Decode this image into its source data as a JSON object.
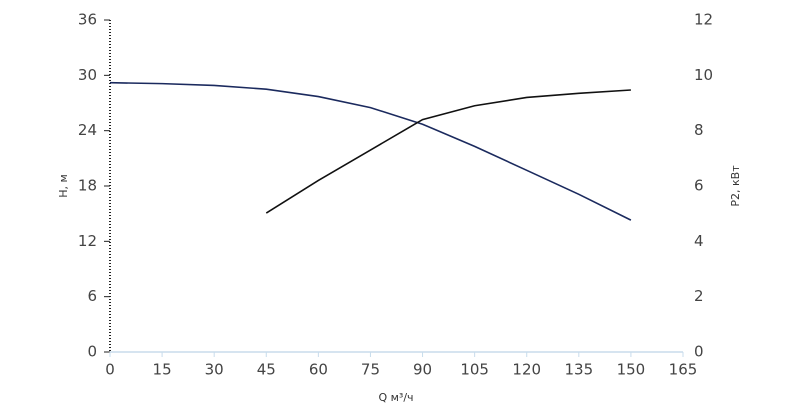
{
  "chart_data": {
    "type": "line",
    "xlabel": "Q м³/ч",
    "ylabel": "H, м",
    "y2label": "P2, кВт",
    "xlim": [
      0,
      165
    ],
    "xticks": [
      0,
      15,
      30,
      45,
      60,
      75,
      90,
      105,
      120,
      135,
      150,
      165
    ],
    "ylim": [
      0,
      36
    ],
    "yticks": [
      0,
      6,
      12,
      18,
      24,
      30,
      36
    ],
    "y2lim": [
      0,
      12
    ],
    "y2ticks": [
      0,
      2,
      4,
      6,
      8,
      10,
      12
    ],
    "grid": false,
    "series": [
      {
        "color": "#1b2a5e",
        "x": [
          0,
          15,
          30,
          45,
          60,
          75,
          90,
          105,
          120,
          135,
          150
        ],
        "values": [
          29.2,
          29.1,
          28.9,
          28.5,
          27.7,
          26.5,
          24.7,
          22.3,
          19.7,
          17.1,
          14.3
        ]
      },
      {
        "color": "#111111",
        "axis": "y2",
        "x": [
          45,
          60,
          75,
          90,
          105,
          120,
          135,
          150
        ],
        "values": [
          5.02,
          6.2,
          7.3,
          8.4,
          8.9,
          9.2,
          9.35,
          9.47
        ]
      }
    ]
  }
}
